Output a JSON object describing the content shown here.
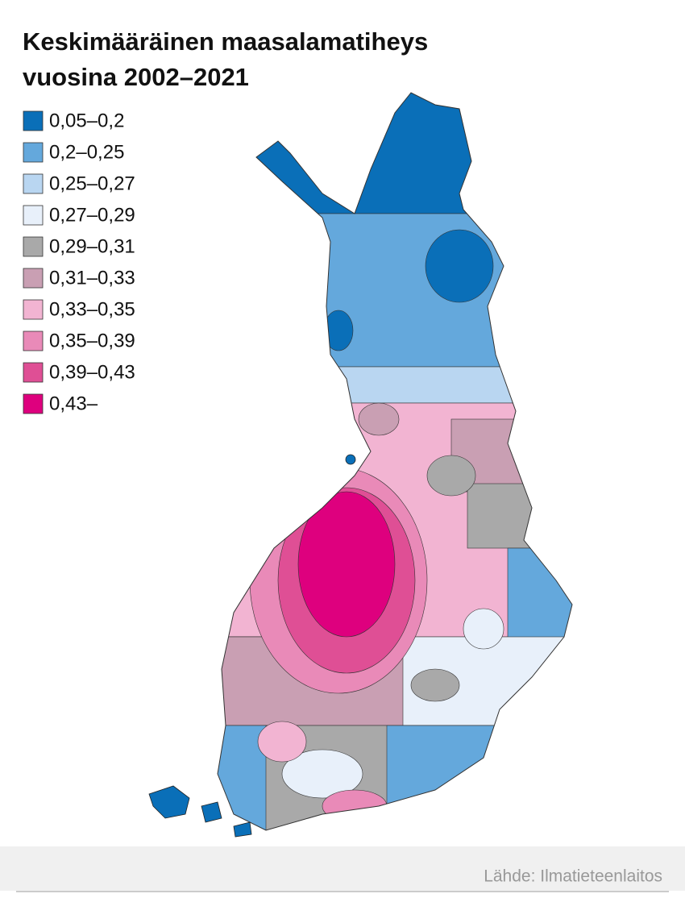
{
  "title": [
    "Keskimääräinen maasalamatiheys",
    "vuosina 2002–2021"
  ],
  "legend": [
    {
      "label": "0,05–0,2",
      "color": "#0a6fb8"
    },
    {
      "label": "0,2–0,25",
      "color": "#64a8dc"
    },
    {
      "label": "0,25–0,27",
      "color": "#b9d6f1"
    },
    {
      "label": "0,27–0,29",
      "color": "#e8f0fa"
    },
    {
      "label": "0,29–0,31",
      "color": "#a9a9a9"
    },
    {
      "label": "0,31–0,33",
      "color": "#c99fb3"
    },
    {
      "label": "0,33–0,35",
      "color": "#f2b4d2"
    },
    {
      "label": "0,35–0,39",
      "color": "#e98ab8"
    },
    {
      "label": "0,39–0,43",
      "color": "#df4f95"
    },
    {
      "label": "0,43–",
      "color": "#de007e"
    }
  ],
  "source": "Lähde: Ilmatieteenlaitos"
}
